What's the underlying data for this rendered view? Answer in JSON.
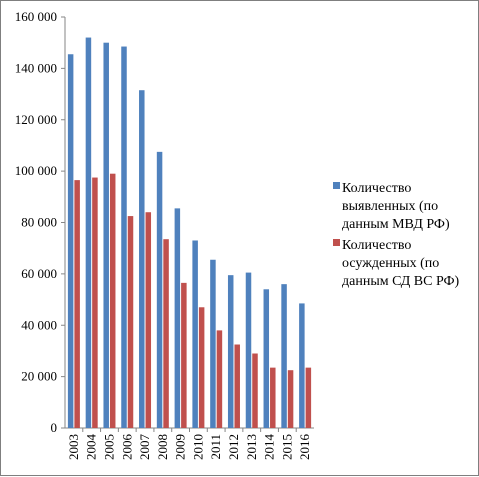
{
  "chart_data": {
    "type": "bar",
    "categories": [
      "2003",
      "2004",
      "2005",
      "2006",
      "2007",
      "2008",
      "2009",
      "2010",
      "2011",
      "2012",
      "2013",
      "2014",
      "2015",
      "2016"
    ],
    "series": [
      {
        "name_lines": [
          "Количество",
          "выявленных (по",
          "данным МВД РФ)"
        ],
        "color": "#4f81bd",
        "values": [
          145500,
          152000,
          150000,
          148500,
          131500,
          107500,
          85500,
          73000,
          65500,
          59500,
          60500,
          54000,
          56000,
          48500
        ]
      },
      {
        "name_lines": [
          "Количество",
          "осужденных (по",
          "данным СД ВС РФ)"
        ],
        "color": "#c0504d",
        "values": [
          96500,
          97500,
          99000,
          82500,
          84000,
          73500,
          56500,
          47000,
          38000,
          32500,
          29000,
          23500,
          22500,
          23500
        ]
      }
    ],
    "y_ticks": [
      "0",
      "20 000",
      "40 000",
      "60 000",
      "80 000",
      "100 000",
      "120 000",
      "140 000",
      "160 000"
    ],
    "ylim": [
      0,
      160000
    ],
    "grid": false,
    "legend_position": "right"
  }
}
